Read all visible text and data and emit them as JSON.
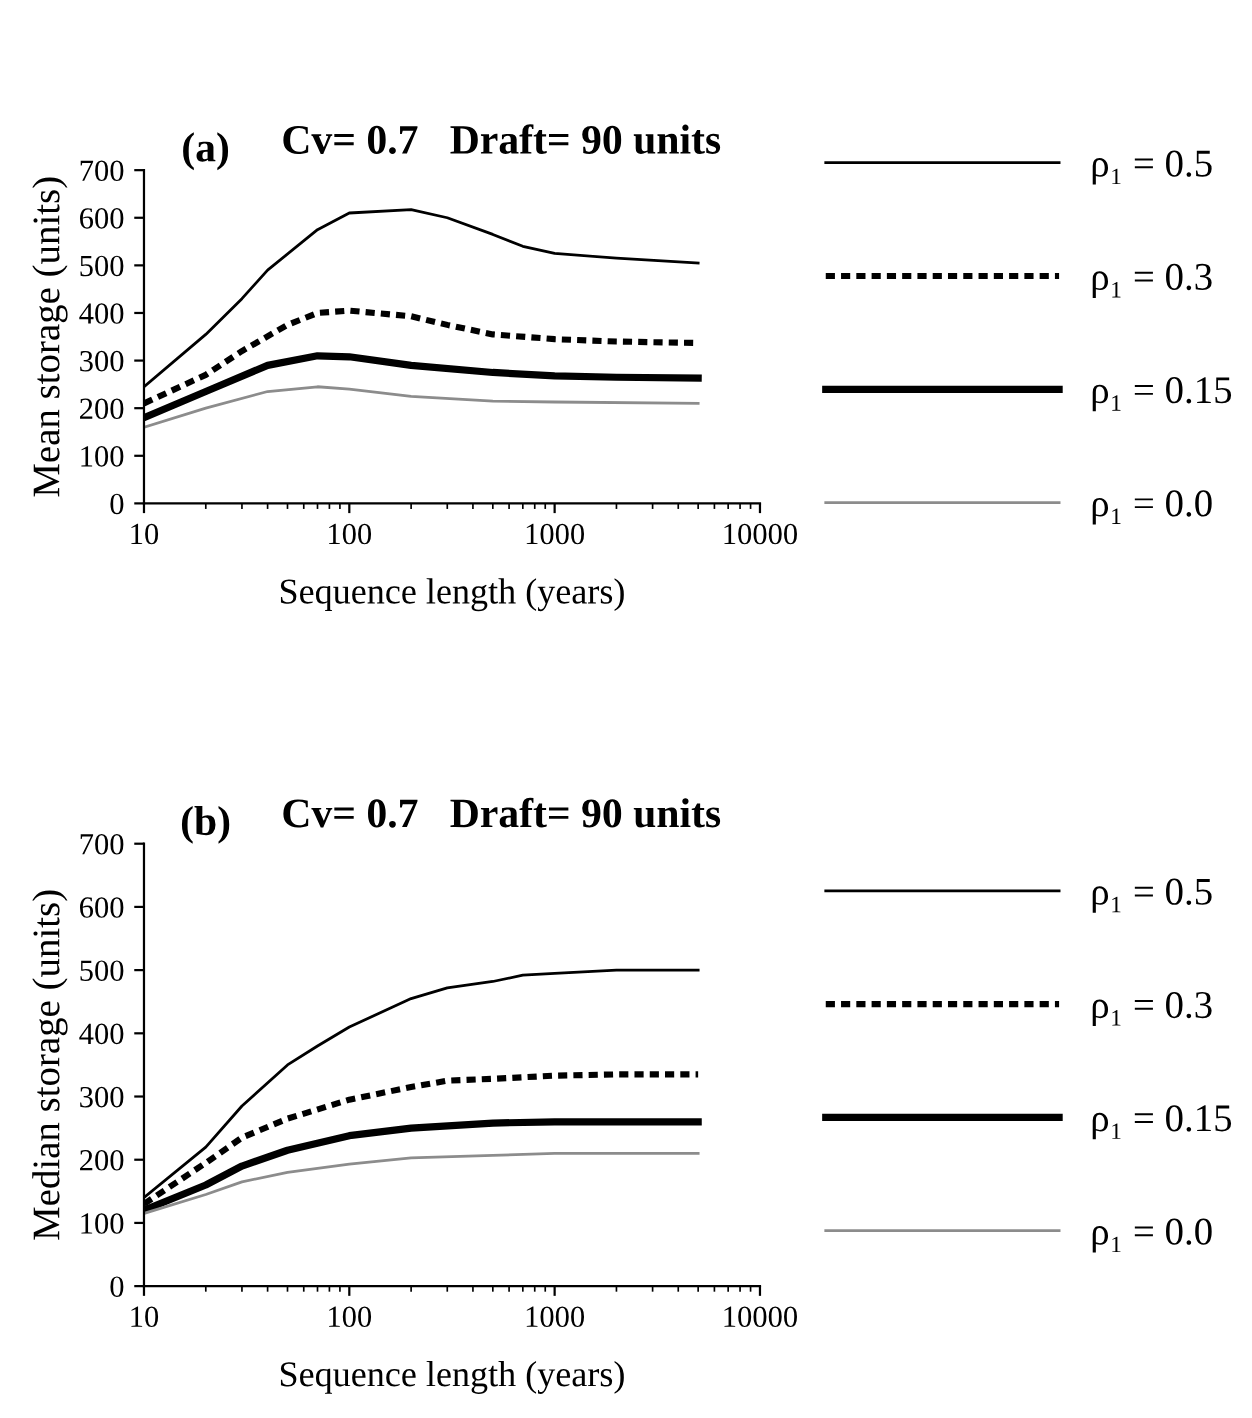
{
  "chart_data": [
    {
      "type": "line",
      "title": "Cv= 0.7   Draft= 90 units",
      "annotations": [
        "(a)"
      ],
      "xlabel": "Sequence length (years)",
      "ylabel": "Mean storage (units)",
      "log": "x",
      "xlim": [
        10,
        10000
      ],
      "xticks": [
        10,
        100,
        1000,
        10000
      ],
      "ylim": [
        0,
        700
      ],
      "yticks": [
        0,
        100,
        200,
        300,
        400,
        500,
        600,
        700
      ],
      "grid": false,
      "legend": "right",
      "marker": "none",
      "series": [
        {
          "name": "ρ₁ = 0.5",
          "color": "#000000",
          "line_style": "solid",
          "x": [
            10,
            20,
            30,
            40,
            70,
            100,
            200,
            300,
            500,
            700,
            1000,
            2000,
            5000
          ],
          "values": [
            245,
            355,
            430,
            490,
            575,
            610,
            617,
            600,
            565,
            540,
            525,
            515,
            505
          ]
        },
        {
          "name": "ρ₁ = 0.3",
          "color": "#000000",
          "line_style": "dashed",
          "x": [
            10,
            20,
            30,
            50,
            70,
            100,
            200,
            300,
            500,
            1000,
            2000,
            5000
          ],
          "values": [
            210,
            270,
            320,
            375,
            400,
            405,
            393,
            375,
            355,
            345,
            340,
            337
          ]
        },
        {
          "name": "ρ₁ = 0.15",
          "color": "#000000",
          "line_style": "solid",
          "x": [
            10,
            20,
            40,
            70,
            100,
            200,
            500,
            1000,
            2000,
            5000
          ],
          "values": [
            180,
            235,
            290,
            310,
            308,
            290,
            275,
            268,
            265,
            263
          ]
        },
        {
          "name": "ρ₁ = 0.0",
          "color": "#8c8c8c",
          "line_style": "solid",
          "x": [
            10,
            20,
            40,
            70,
            100,
            200,
            500,
            1000,
            5000
          ],
          "values": [
            160,
            200,
            235,
            245,
            240,
            225,
            215,
            213,
            210
          ]
        }
      ]
    },
    {
      "type": "line",
      "title": "Cv= 0.7   Draft= 90 units",
      "annotations": [
        "(b)"
      ],
      "xlabel": "Sequence length (years)",
      "ylabel": "Median storage (units)",
      "log": "x",
      "xlim": [
        10,
        10000
      ],
      "xticks": [
        10,
        100,
        1000,
        10000
      ],
      "ylim": [
        0,
        700
      ],
      "yticks": [
        0,
        100,
        200,
        300,
        400,
        500,
        600,
        700
      ],
      "grid": false,
      "legend": "right",
      "marker": "none",
      "series": [
        {
          "name": "ρ₁ = 0.5",
          "color": "#000000",
          "line_style": "solid",
          "x": [
            10,
            20,
            30,
            50,
            70,
            100,
            200,
            300,
            500,
            700,
            1000,
            2000,
            5000
          ],
          "values": [
            140,
            220,
            285,
            350,
            380,
            410,
            455,
            472,
            482,
            492,
            495,
            500,
            500
          ]
        },
        {
          "name": "ρ₁ = 0.3",
          "color": "#000000",
          "line_style": "dashed",
          "x": [
            10,
            20,
            30,
            50,
            100,
            200,
            300,
            500,
            1000,
            2000,
            5000
          ],
          "values": [
            130,
            195,
            235,
            265,
            295,
            315,
            325,
            328,
            333,
            335,
            335
          ]
        },
        {
          "name": "ρ₁ = 0.15",
          "color": "#000000",
          "line_style": "solid",
          "x": [
            10,
            20,
            30,
            50,
            100,
            200,
            500,
            1000,
            2000,
            5000
          ],
          "values": [
            120,
            160,
            190,
            215,
            238,
            250,
            258,
            260,
            260,
            260
          ]
        },
        {
          "name": "ρ₁ = 0.0",
          "color": "#8c8c8c",
          "line_style": "solid",
          "x": [
            10,
            20,
            30,
            50,
            100,
            200,
            500,
            1000,
            5000
          ],
          "values": [
            115,
            145,
            165,
            180,
            193,
            203,
            207,
            210,
            210
          ]
        }
      ]
    }
  ]
}
